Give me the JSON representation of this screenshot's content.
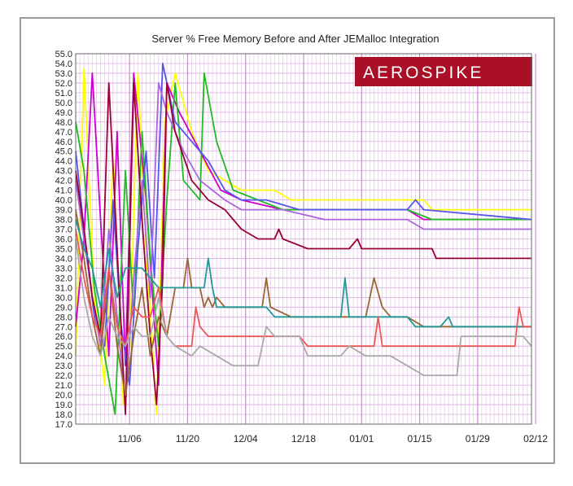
{
  "chart_data": {
    "type": "line",
    "title": "Server % Free Memory Before and After JEMalloc Integration",
    "xlabel": "",
    "ylabel": "",
    "ylim": [
      17.0,
      55.0
    ],
    "y_ticks": [
      "17.0",
      "18.0",
      "19.0",
      "20.0",
      "21.0",
      "22.0",
      "23.0",
      "24.0",
      "25.0",
      "26.0",
      "27.0",
      "28.0",
      "29.0",
      "30.0",
      "31.0",
      "32.0",
      "33.0",
      "34.0",
      "35.0",
      "36.0",
      "37.0",
      "38.0",
      "39.0",
      "40.0",
      "41.0",
      "42.0",
      "43.0",
      "44.0",
      "45.0",
      "46.0",
      "47.0",
      "48.0",
      "49.0",
      "50.0",
      "51.0",
      "52.0",
      "53.0",
      "54.0",
      "55.0"
    ],
    "x_range_days": [
      0,
      110
    ],
    "x_ticks": [
      {
        "label": "11/06",
        "day": 13
      },
      {
        "label": "11/20",
        "day": 27
      },
      {
        "label": "12/04",
        "day": 41
      },
      {
        "label": "12/18",
        "day": 55
      },
      {
        "label": "01/01",
        "day": 69
      },
      {
        "label": "01/15",
        "day": 83
      },
      {
        "label": "01/29",
        "day": 97
      },
      {
        "label": "02/12",
        "day": 111
      }
    ],
    "grid": true,
    "brand_text": "AEROSPIKE",
    "series": [
      {
        "color": "#ffff00",
        "points": [
          [
            0,
            24
          ],
          [
            2,
            53.5
          ],
          [
            4.5,
            30
          ],
          [
            7,
            21
          ],
          [
            9,
            45
          ],
          [
            11.5,
            19
          ],
          [
            13,
            24
          ],
          [
            15,
            53
          ],
          [
            17,
            35
          ],
          [
            19.5,
            18
          ],
          [
            21.5,
            48
          ],
          [
            24,
            53
          ],
          [
            28,
            47
          ],
          [
            32,
            43
          ],
          [
            36,
            42
          ],
          [
            40,
            41
          ],
          [
            44,
            41
          ],
          [
            48,
            41
          ],
          [
            52,
            40
          ],
          [
            60,
            40
          ],
          [
            70,
            40
          ],
          [
            80,
            40
          ],
          [
            84,
            40
          ],
          [
            86,
            39
          ],
          [
            110,
            39
          ]
        ]
      },
      {
        "color": "#cc00cc",
        "points": [
          [
            0,
            27
          ],
          [
            2,
            36
          ],
          [
            4,
            53
          ],
          [
            6,
            38
          ],
          [
            8,
            24
          ],
          [
            10,
            47
          ],
          [
            12,
            23
          ],
          [
            14,
            53
          ],
          [
            17,
            40
          ],
          [
            20,
            21
          ],
          [
            22,
            52
          ],
          [
            25,
            49
          ],
          [
            30,
            45
          ],
          [
            35,
            41
          ],
          [
            40,
            40
          ],
          [
            50,
            39
          ],
          [
            60,
            39
          ],
          [
            70,
            39
          ],
          [
            80,
            39
          ],
          [
            84,
            38
          ],
          [
            110,
            38
          ]
        ]
      },
      {
        "color": "#22bb22",
        "points": [
          [
            0,
            48
          ],
          [
            2,
            43
          ],
          [
            4.5,
            31
          ],
          [
            7,
            24
          ],
          [
            9.5,
            18
          ],
          [
            12,
            43
          ],
          [
            14,
            28
          ],
          [
            16,
            47
          ],
          [
            18,
            34
          ],
          [
            20,
            25
          ],
          [
            22,
            40
          ],
          [
            24,
            52
          ],
          [
            26,
            42
          ],
          [
            30,
            40
          ],
          [
            31,
            53
          ],
          [
            34,
            46
          ],
          [
            38,
            41
          ],
          [
            44,
            40
          ],
          [
            50,
            39
          ],
          [
            60,
            39
          ],
          [
            70,
            39
          ],
          [
            80,
            39
          ],
          [
            86,
            38
          ],
          [
            110,
            38
          ]
        ]
      },
      {
        "color": "#5555ee",
        "points": [
          [
            0,
            45
          ],
          [
            2,
            37
          ],
          [
            4.5,
            28
          ],
          [
            7,
            25
          ],
          [
            9,
            40
          ],
          [
            11,
            27
          ],
          [
            13,
            21
          ],
          [
            15,
            35
          ],
          [
            17,
            45
          ],
          [
            19,
            32
          ],
          [
            21,
            54
          ],
          [
            24,
            48
          ],
          [
            28,
            46
          ],
          [
            32,
            44
          ],
          [
            36,
            41
          ],
          [
            40,
            40
          ],
          [
            46,
            40
          ],
          [
            54,
            39
          ],
          [
            60,
            39
          ],
          [
            70,
            39
          ],
          [
            80,
            39
          ],
          [
            82,
            40
          ],
          [
            84,
            39
          ],
          [
            110,
            38
          ]
        ]
      },
      {
        "color": "#aa66dd",
        "points": [
          [
            0,
            42
          ],
          [
            2,
            36
          ],
          [
            4,
            30
          ],
          [
            6,
            25
          ],
          [
            8,
            37
          ],
          [
            10,
            28
          ],
          [
            12,
            19
          ],
          [
            14,
            32
          ],
          [
            16,
            42
          ],
          [
            18,
            30
          ],
          [
            20,
            52
          ],
          [
            22,
            49
          ],
          [
            26,
            45
          ],
          [
            30,
            42
          ],
          [
            36,
            40
          ],
          [
            40,
            39
          ],
          [
            50,
            39
          ],
          [
            60,
            38
          ],
          [
            70,
            38
          ],
          [
            80,
            38
          ],
          [
            84,
            37
          ],
          [
            110,
            37
          ]
        ]
      },
      {
        "color": "#990033",
        "points": [
          [
            0,
            43
          ],
          [
            2,
            37
          ],
          [
            4,
            30
          ],
          [
            6,
            26
          ],
          [
            8,
            52
          ],
          [
            10,
            35
          ],
          [
            12,
            18
          ],
          [
            14,
            52
          ],
          [
            16,
            38
          ],
          [
            18,
            26
          ],
          [
            19.5,
            19
          ],
          [
            21,
            32
          ],
          [
            22,
            52
          ],
          [
            24,
            47
          ],
          [
            28,
            42
          ],
          [
            32,
            40
          ],
          [
            36,
            39
          ],
          [
            40,
            37
          ],
          [
            44,
            36
          ],
          [
            48,
            36
          ],
          [
            49,
            37
          ],
          [
            50,
            36
          ],
          [
            56,
            35
          ],
          [
            66,
            35
          ],
          [
            68,
            36
          ],
          [
            69,
            35
          ],
          [
            80,
            35
          ],
          [
            86,
            35
          ],
          [
            87,
            34
          ],
          [
            110,
            34
          ]
        ]
      },
      {
        "color": "#996633",
        "points": [
          [
            0,
            39
          ],
          [
            2,
            34
          ],
          [
            4,
            28
          ],
          [
            6,
            24
          ],
          [
            8,
            33
          ],
          [
            10,
            25
          ],
          [
            12,
            20
          ],
          [
            14,
            26
          ],
          [
            16,
            31
          ],
          [
            18,
            24
          ],
          [
            20,
            28
          ],
          [
            22,
            26
          ],
          [
            24,
            31
          ],
          [
            26,
            31
          ],
          [
            27,
            34
          ],
          [
            28,
            31
          ],
          [
            30,
            31
          ],
          [
            31,
            29
          ],
          [
            32,
            30
          ],
          [
            33,
            29
          ],
          [
            34,
            30
          ],
          [
            36,
            29
          ],
          [
            40,
            29
          ],
          [
            45,
            29
          ],
          [
            46,
            32
          ],
          [
            47,
            29
          ],
          [
            52,
            28
          ],
          [
            65,
            28
          ],
          [
            70,
            28
          ],
          [
            72,
            32
          ],
          [
            74,
            29
          ],
          [
            76,
            28
          ],
          [
            80,
            28
          ],
          [
            84,
            27
          ],
          [
            90,
            27
          ],
          [
            110,
            27
          ]
        ]
      },
      {
        "color": "#229999",
        "points": [
          [
            0,
            38
          ],
          [
            2,
            35
          ],
          [
            4,
            33
          ],
          [
            6,
            29
          ],
          [
            8,
            35
          ],
          [
            10,
            30
          ],
          [
            12,
            33
          ],
          [
            14,
            33
          ],
          [
            16,
            33
          ],
          [
            18,
            32
          ],
          [
            20,
            31
          ],
          [
            26,
            31
          ],
          [
            31,
            31
          ],
          [
            32,
            34
          ],
          [
            33,
            31
          ],
          [
            34,
            29
          ],
          [
            40,
            29
          ],
          [
            46,
            29
          ],
          [
            48,
            28
          ],
          [
            60,
            28
          ],
          [
            64,
            28
          ],
          [
            65,
            32
          ],
          [
            66,
            28
          ],
          [
            72,
            28
          ],
          [
            80,
            28
          ],
          [
            82,
            27
          ],
          [
            88,
            27
          ],
          [
            90,
            28
          ],
          [
            91,
            27
          ],
          [
            110,
            27
          ]
        ]
      },
      {
        "color": "#ee5555",
        "points": [
          [
            0,
            37
          ],
          [
            2,
            32
          ],
          [
            4,
            28
          ],
          [
            6,
            26
          ],
          [
            8,
            33
          ],
          [
            10,
            27
          ],
          [
            12,
            25
          ],
          [
            14,
            29
          ],
          [
            16,
            28
          ],
          [
            18,
            28
          ],
          [
            20,
            31
          ],
          [
            22,
            26
          ],
          [
            24,
            25
          ],
          [
            28,
            25
          ],
          [
            29,
            29
          ],
          [
            30,
            27
          ],
          [
            32,
            26
          ],
          [
            40,
            26
          ],
          [
            46,
            26
          ],
          [
            50,
            26
          ],
          [
            54,
            26
          ],
          [
            56,
            25
          ],
          [
            66,
            25
          ],
          [
            72,
            25
          ],
          [
            73,
            28
          ],
          [
            74,
            25
          ],
          [
            82,
            25
          ],
          [
            86,
            25
          ],
          [
            100,
            25
          ],
          [
            106,
            25
          ],
          [
            107,
            29
          ],
          [
            108,
            27
          ],
          [
            110,
            27
          ]
        ]
      },
      {
        "color": "#aaaaaa",
        "points": [
          [
            0,
            36
          ],
          [
            2,
            30
          ],
          [
            4,
            26
          ],
          [
            6,
            24
          ],
          [
            8,
            28
          ],
          [
            10,
            26
          ],
          [
            12,
            25
          ],
          [
            14,
            27
          ],
          [
            16,
            26
          ],
          [
            18,
            26
          ],
          [
            20,
            30
          ],
          [
            22,
            26
          ],
          [
            24,
            25
          ],
          [
            28,
            24
          ],
          [
            30,
            25
          ],
          [
            34,
            24
          ],
          [
            38,
            23
          ],
          [
            44,
            23
          ],
          [
            46,
            27
          ],
          [
            48,
            26
          ],
          [
            50,
            26
          ],
          [
            54,
            26
          ],
          [
            56,
            24
          ],
          [
            60,
            24
          ],
          [
            64,
            24
          ],
          [
            66,
            25
          ],
          [
            70,
            24
          ],
          [
            76,
            24
          ],
          [
            80,
            23
          ],
          [
            84,
            22
          ],
          [
            90,
            22
          ],
          [
            92,
            22
          ],
          [
            93,
            26
          ],
          [
            96,
            26
          ],
          [
            104,
            26
          ],
          [
            108,
            26
          ],
          [
            110,
            25
          ]
        ]
      }
    ]
  }
}
